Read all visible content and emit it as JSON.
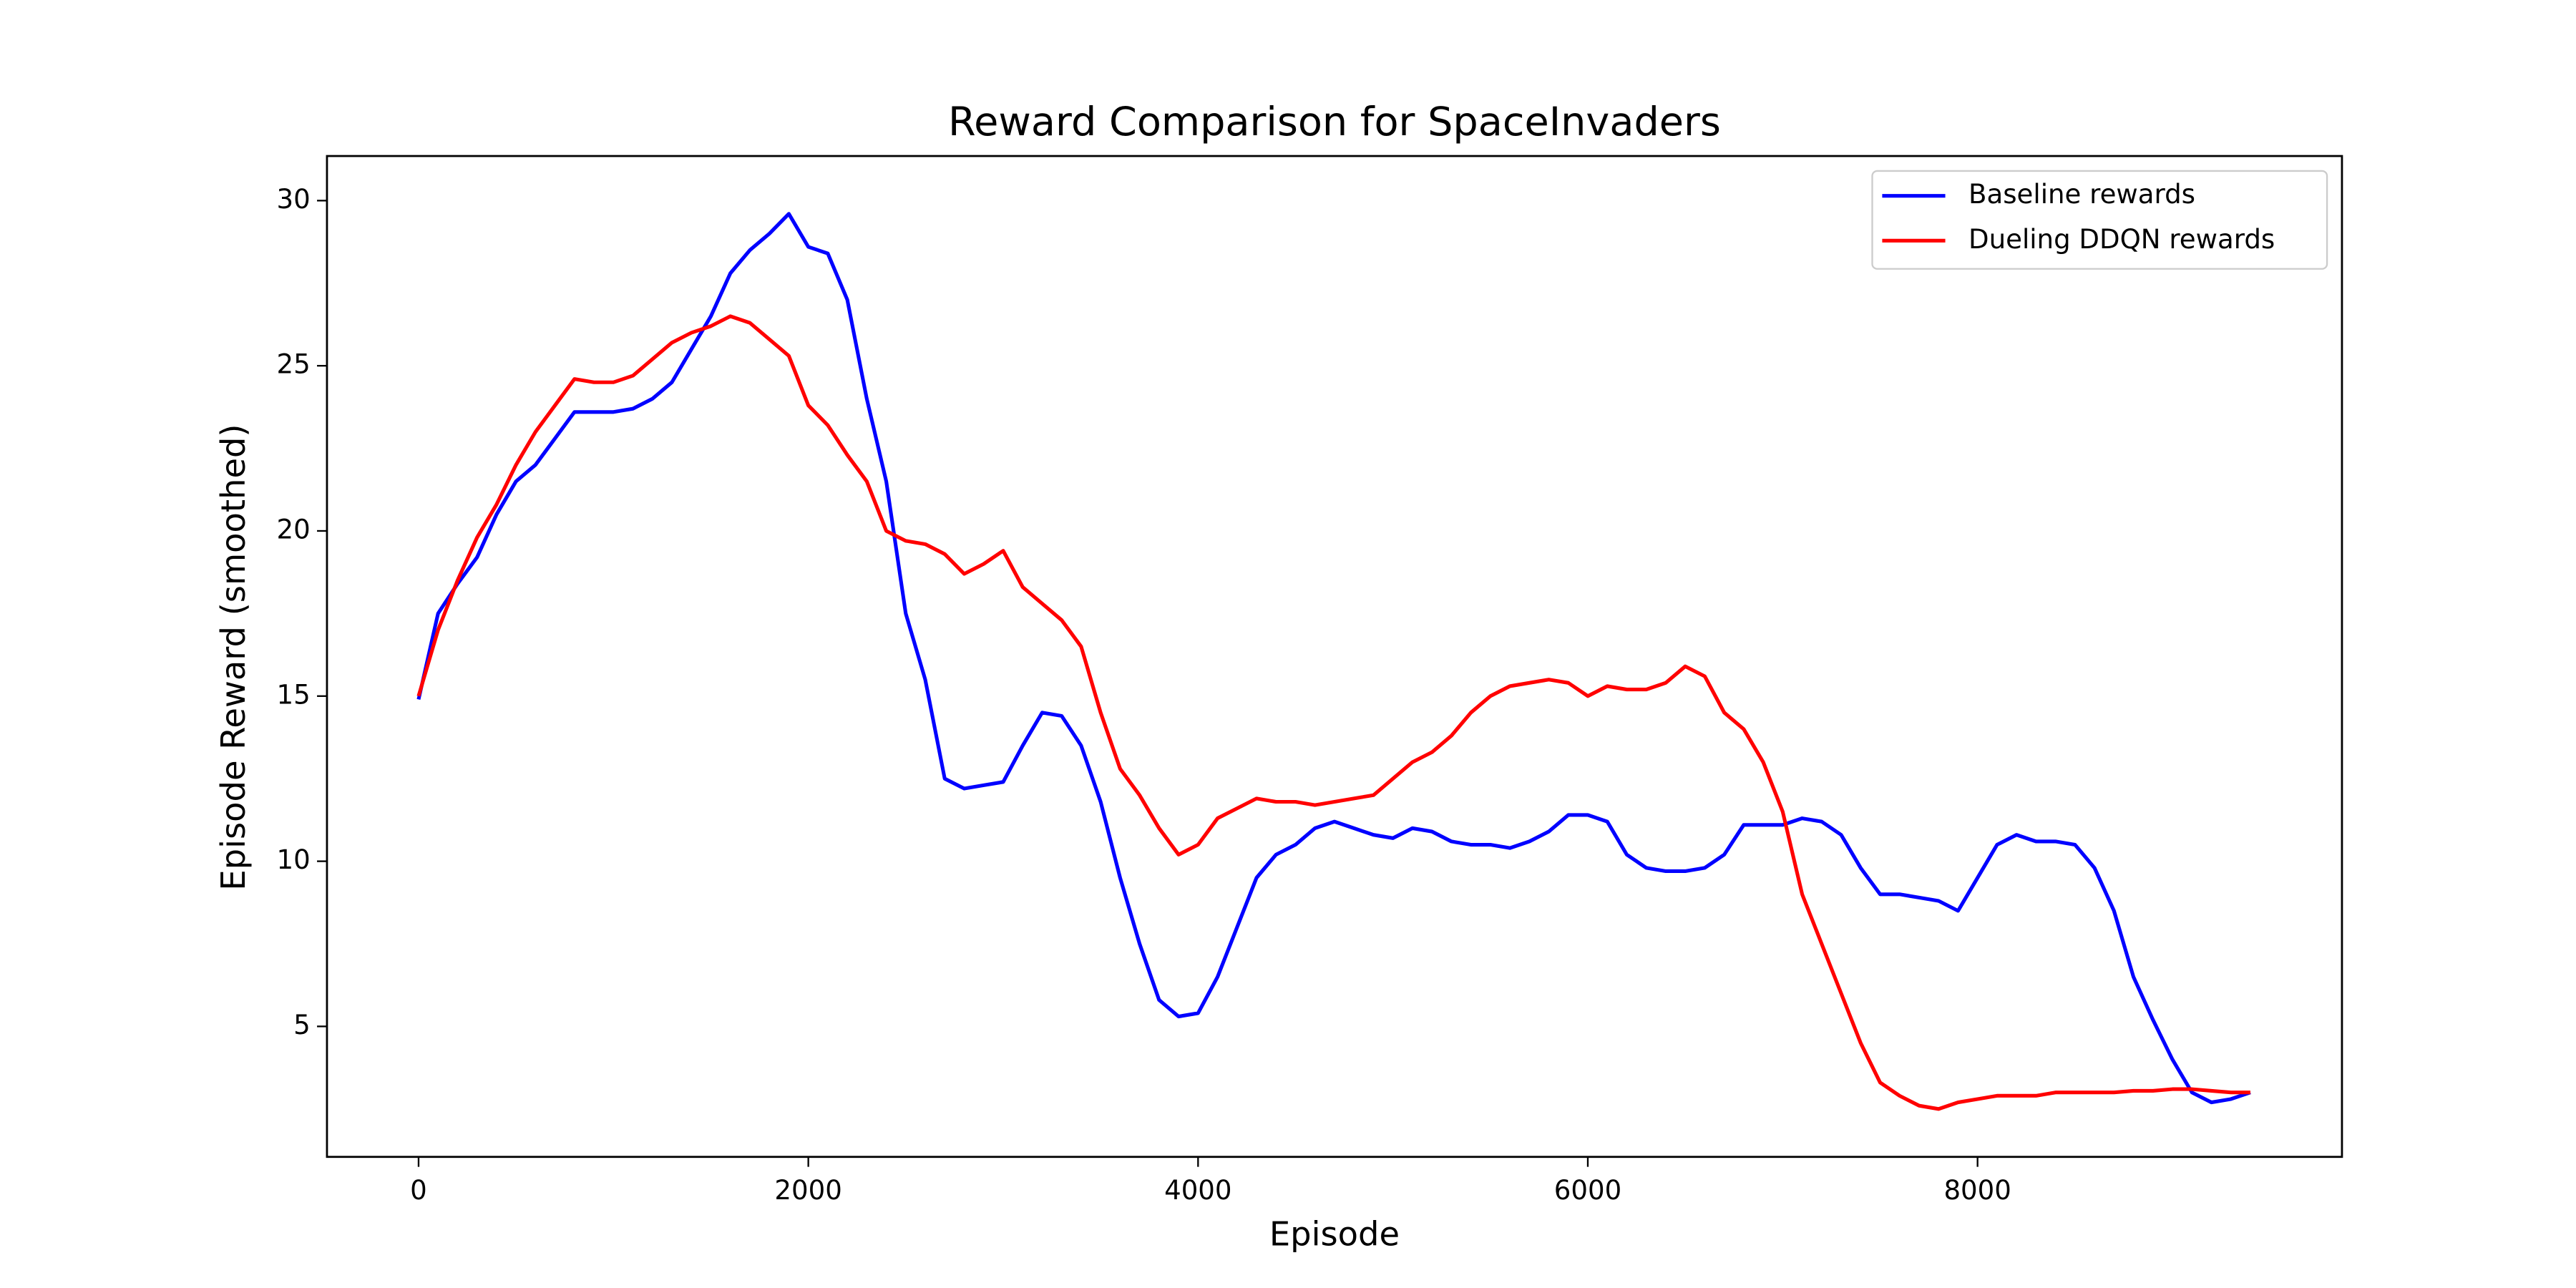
{
  "chart_data": {
    "type": "line",
    "title": "Reward Comparison for SpaceInvaders",
    "x_label": "Episode",
    "y_label": "Episode Reward (smoothed)",
    "x": [
      0,
      100,
      200,
      300,
      400,
      500,
      600,
      700,
      800,
      900,
      1000,
      1100,
      1200,
      1300,
      1400,
      1500,
      1600,
      1700,
      1800,
      1900,
      2000,
      2100,
      2200,
      2300,
      2400,
      2500,
      2600,
      2700,
      2800,
      2900,
      3000,
      3100,
      3200,
      3300,
      3400,
      3500,
      3600,
      3700,
      3800,
      3900,
      4000,
      4100,
      4200,
      4300,
      4400,
      4500,
      4600,
      4700,
      4800,
      4900,
      5000,
      5100,
      5200,
      5300,
      5400,
      5500,
      5600,
      5700,
      5800,
      5900,
      6000,
      6100,
      6200,
      6300,
      6400,
      6500,
      6600,
      6700,
      6800,
      6900,
      7000,
      7100,
      7200,
      7300,
      7400,
      7500,
      7600,
      7700,
      7800,
      7900,
      8000,
      8100,
      8200,
      8300,
      8400,
      8500,
      8600,
      8700,
      8800,
      8900,
      9000,
      9100,
      9200,
      9300,
      9400
    ],
    "series": [
      {
        "name": "Baseline rewards",
        "color": "#0000ff",
        "values": [
          14.9,
          17.5,
          18.4,
          19.2,
          20.5,
          21.5,
          22.0,
          22.8,
          23.6,
          23.6,
          23.6,
          23.7,
          24.0,
          24.5,
          25.5,
          26.5,
          27.8,
          28.5,
          29.0,
          29.6,
          28.6,
          28.4,
          27.0,
          24.0,
          21.5,
          17.5,
          15.5,
          12.5,
          12.2,
          12.3,
          12.4,
          13.5,
          14.5,
          14.4,
          13.5,
          11.8,
          9.5,
          7.5,
          5.8,
          5.3,
          5.4,
          6.5,
          8.0,
          9.5,
          10.2,
          10.5,
          11.0,
          11.2,
          11.0,
          10.8,
          10.7,
          11.0,
          10.9,
          10.6,
          10.5,
          10.5,
          10.4,
          10.6,
          10.9,
          11.4,
          11.4,
          11.2,
          10.2,
          9.8,
          9.7,
          9.7,
          9.8,
          10.2,
          11.1,
          11.1,
          11.1,
          11.3,
          11.2,
          10.8,
          9.8,
          9.0,
          9.0,
          8.9,
          8.8,
          8.5,
          9.5,
          10.5,
          10.8,
          10.6,
          10.6,
          10.5,
          9.8,
          8.5,
          6.5,
          5.2,
          4.0,
          3.0,
          2.7,
          2.8,
          3.0
        ]
      },
      {
        "name": "Dueling DDQN rewards",
        "color": "#ff0000",
        "values": [
          15.0,
          17.0,
          18.5,
          19.8,
          20.8,
          22.0,
          23.0,
          23.8,
          24.6,
          24.5,
          24.5,
          24.7,
          25.2,
          25.7,
          26.0,
          26.2,
          26.5,
          26.3,
          25.8,
          25.3,
          23.8,
          23.2,
          22.3,
          21.5,
          20.0,
          19.7,
          19.6,
          19.3,
          18.7,
          19.0,
          19.4,
          18.3,
          17.8,
          17.3,
          16.5,
          14.5,
          12.8,
          12.0,
          11.0,
          10.2,
          10.5,
          11.3,
          11.6,
          11.9,
          11.8,
          11.8,
          11.7,
          11.8,
          11.9,
          12.0,
          12.5,
          13.0,
          13.3,
          13.8,
          14.5,
          15.0,
          15.3,
          15.4,
          15.5,
          15.4,
          15.0,
          15.3,
          15.2,
          15.2,
          15.4,
          15.9,
          15.6,
          14.5,
          14.0,
          13.0,
          11.5,
          9.0,
          7.5,
          6.0,
          4.5,
          3.3,
          2.9,
          2.6,
          2.5,
          2.7,
          2.8,
          2.9,
          2.9,
          2.9,
          3.0,
          3.0,
          3.0,
          3.0,
          3.05,
          3.05,
          3.1,
          3.1,
          3.05,
          3.0,
          3.0
        ]
      }
    ],
    "xlim": [
      -470,
      9870
    ],
    "ylim": [
      1.05,
      31.35
    ],
    "xticks": [
      0,
      2000,
      4000,
      6000,
      8000
    ],
    "yticks": [
      5,
      10,
      15,
      20,
      25,
      30
    ],
    "legend": "upper right"
  }
}
